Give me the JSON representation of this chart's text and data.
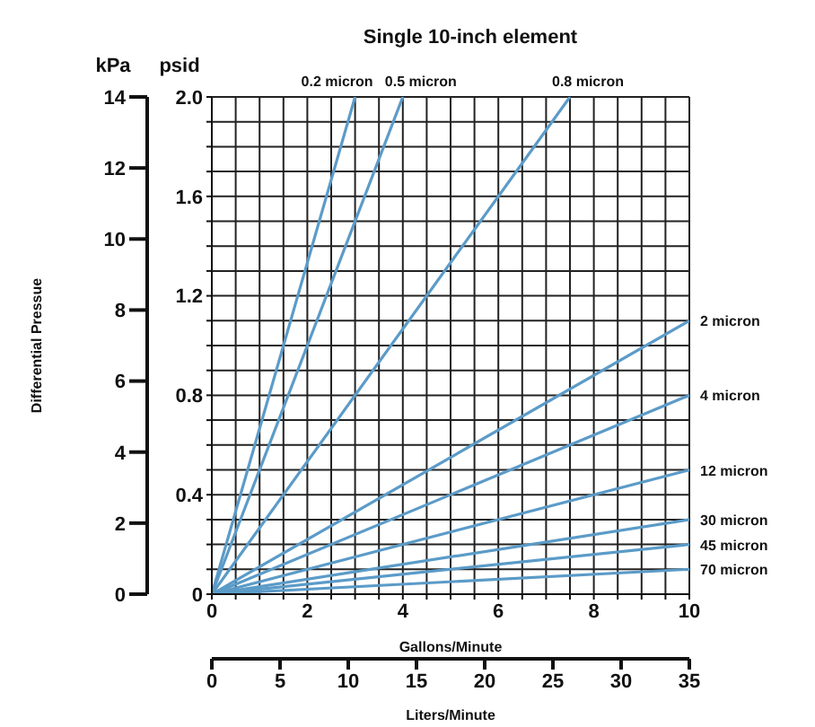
{
  "chart_data": {
    "type": "line",
    "title": "Single 10-inch element",
    "xlabel": "Gallons/Minute",
    "ylabel": "Differential Pressue",
    "y2label": "psid",
    "x2label": "Liters/Minute",
    "annotations": [
      "kPa"
    ],
    "xlim": [
      0,
      10
    ],
    "ylim": [
      0,
      14
    ],
    "yticks": [
      0,
      2,
      4,
      6,
      8,
      10,
      12,
      14
    ],
    "xticks": [
      0,
      {
        "value": 0.5,
        "label": null
      },
      {
        "value": 1,
        "label": null
      },
      {
        "value": 1.5,
        "label": null
      },
      2,
      {
        "value": 2.5,
        "label": null
      },
      {
        "value": 3,
        "label": null
      },
      {
        "value": 3.5,
        "label": null
      },
      4,
      {
        "value": 4.5,
        "label": null
      },
      {
        "value": 5,
        "label": null
      },
      {
        "value": 5.5,
        "label": null
      },
      6,
      {
        "value": 6.5,
        "label": null
      },
      {
        "value": 7,
        "label": null
      },
      {
        "value": 7.5,
        "label": null
      },
      8,
      {
        "value": 8.5,
        "label": null
      },
      {
        "value": 9,
        "label": null
      },
      {
        "value": 9.5,
        "label": null
      },
      10
    ],
    "y2lim": [
      0,
      2.0
    ],
    "y2ticks": [
      0,
      {
        "value": 0.1,
        "label": null
      },
      {
        "value": 0.2,
        "label": null
      },
      {
        "value": 0.3,
        "label": null
      },
      {
        "value": 0.4,
        "label": "0.4"
      },
      {
        "value": 0.5,
        "label": null
      },
      {
        "value": 0.6,
        "label": null
      },
      {
        "value": 0.7,
        "label": null
      },
      {
        "value": 0.8,
        "label": "0.8"
      },
      {
        "value": 0.9,
        "label": null
      },
      {
        "value": 1.0,
        "label": null
      },
      {
        "value": 1.1,
        "label": null
      },
      {
        "value": 1.2,
        "label": "1.2"
      },
      {
        "value": 1.3,
        "label": null
      },
      {
        "value": 1.4,
        "label": null
      },
      {
        "value": 1.5,
        "label": null
      },
      {
        "value": 1.6,
        "label": "1.6"
      },
      {
        "value": 1.7,
        "label": null
      },
      {
        "value": 1.8,
        "label": null
      },
      {
        "value": 1.9,
        "label": null
      },
      {
        "value": 2.0,
        "label": "2.0"
      }
    ],
    "x2lim": [
      0,
      35
    ],
    "x2ticks": [
      0,
      5,
      10,
      15,
      20,
      25,
      30,
      35
    ],
    "grid": true,
    "legend": false,
    "marker": "none",
    "line_style": "solid",
    "series": [
      {
        "name": "0.2 micron",
        "color": "#5b9bc8",
        "axis": "y2",
        "x": [
          0,
          3.0
        ],
        "values": [
          0,
          2.0
        ]
      },
      {
        "name": "0.5 micron",
        "color": "#5b9bc8",
        "axis": "y2",
        "x": [
          0,
          4.0
        ],
        "values": [
          0,
          2.0
        ]
      },
      {
        "name": "0.8 micron",
        "color": "#5b9bc8",
        "axis": "y2",
        "x": [
          0,
          7.5
        ],
        "values": [
          0,
          2.0
        ]
      },
      {
        "name": "2 micron",
        "color": "#5b9bc8",
        "axis": "y2",
        "x": [
          0,
          10
        ],
        "values": [
          0,
          1.1
        ]
      },
      {
        "name": "4 micron",
        "color": "#5b9bc8",
        "axis": "y2",
        "x": [
          0,
          10
        ],
        "values": [
          0,
          0.8
        ]
      },
      {
        "name": "12 micron",
        "color": "#5b9bc8",
        "axis": "y2",
        "x": [
          0,
          10
        ],
        "values": [
          0,
          0.5
        ]
      },
      {
        "name": "30 micron",
        "color": "#5b9bc8",
        "axis": "y2",
        "x": [
          0,
          10
        ],
        "values": [
          0,
          0.3
        ]
      },
      {
        "name": "45 micron",
        "color": "#5b9bc8",
        "axis": "y2",
        "x": [
          0,
          10
        ],
        "values": [
          0,
          0.2
        ]
      },
      {
        "name": "70 micron",
        "color": "#5b9bc8",
        "axis": "y2",
        "x": [
          0,
          10
        ],
        "values": [
          0,
          0.1
        ]
      }
    ]
  }
}
